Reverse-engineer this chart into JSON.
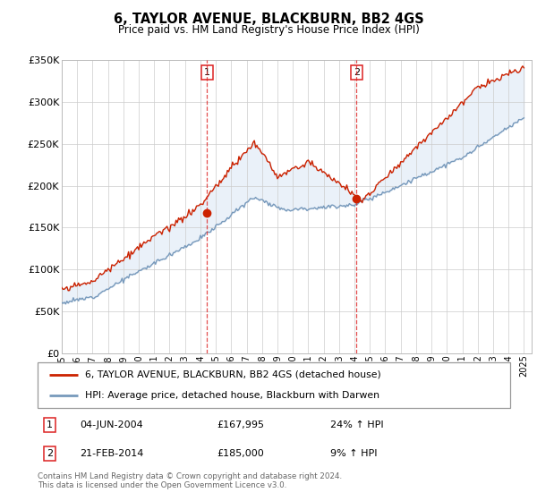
{
  "title": "6, TAYLOR AVENUE, BLACKBURN, BB2 4GS",
  "subtitle": "Price paid vs. HM Land Registry's House Price Index (HPI)",
  "ylim": [
    0,
    350000
  ],
  "yticks": [
    0,
    50000,
    100000,
    150000,
    200000,
    250000,
    300000,
    350000
  ],
  "ytick_labels": [
    "£0",
    "£50K",
    "£100K",
    "£150K",
    "£200K",
    "£250K",
    "£300K",
    "£350K"
  ],
  "plot_bg": "#ffffff",
  "fig_bg": "#ffffff",
  "red_color": "#cc2200",
  "blue_color": "#7799bb",
  "fill_color": "#ccddf0",
  "vline_color": "#dd2222",
  "transaction1": {
    "date": "04-JUN-2004",
    "price": "£167,995",
    "hpi": "24% ↑ HPI"
  },
  "transaction2": {
    "date": "21-FEB-2014",
    "price": "£185,000",
    "hpi": "9% ↑ HPI"
  },
  "legend_line1": "6, TAYLOR AVENUE, BLACKBURN, BB2 4GS (detached house)",
  "legend_line2": "HPI: Average price, detached house, Blackburn with Darwen",
  "footer": "Contains HM Land Registry data © Crown copyright and database right 2024.\nThis data is licensed under the Open Government Licence v3.0.",
  "vline1_x": 2004.43,
  "vline2_x": 2014.13,
  "marker1_y": 167995,
  "marker2_y": 185000,
  "xlim_left": 1995,
  "xlim_right": 2025.5
}
